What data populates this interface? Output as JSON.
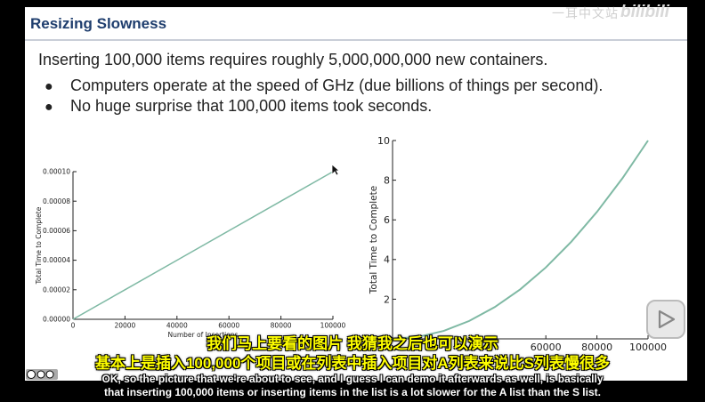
{
  "slide": {
    "title": "Resizing Slowness",
    "main_line": "Inserting 100,000 items requires roughly 5,000,000,000 new containers.",
    "bullets": [
      "Computers operate at the speed of GHz (due billions of things per second).",
      "No huge surprise that 100,000 items took seconds."
    ],
    "bullet_glyph": "●"
  },
  "chart_data": [
    {
      "type": "line",
      "title": "",
      "xlabel": "Number of Insertions",
      "ylabel": "Total Time to Complete",
      "xlim": [
        0,
        100000
      ],
      "ylim": [
        0,
        0.0001
      ],
      "x_ticks": [
        "0",
        "20000",
        "40000",
        "60000",
        "80000",
        "100000"
      ],
      "y_ticks": [
        "0.00000",
        "0.00002",
        "0.00004",
        "0.00006",
        "0.00008",
        "0.00010"
      ],
      "grid": false,
      "line_color": "#7fb9a4",
      "series": [
        {
          "x": [
            0,
            20000,
            40000,
            60000,
            80000,
            100000
          ],
          "y": [
            0,
            2e-05,
            4e-05,
            6e-05,
            8e-05,
            0.0001
          ]
        }
      ]
    },
    {
      "type": "line",
      "title": "",
      "xlabel": "",
      "ylabel": "Total Time to Complete",
      "xlim": [
        0,
        100000
      ],
      "ylim": [
        0,
        10
      ],
      "x_ticks": [
        "60000",
        "80000",
        "100000"
      ],
      "y_ticks": [
        "2",
        "4",
        "6",
        "8",
        "10"
      ],
      "grid": false,
      "line_color": "#7fb9a4",
      "series": [
        {
          "x": [
            0,
            10000,
            20000,
            30000,
            40000,
            50000,
            60000,
            70000,
            80000,
            90000,
            100000
          ],
          "y": [
            0,
            0.1,
            0.4,
            0.9,
            1.6,
            2.5,
            3.6,
            4.9,
            6.4,
            8.1,
            10
          ]
        }
      ]
    }
  ],
  "subtitles": {
    "zh_line1": "我们马上要看的图片 我猜我之后也可以演示",
    "zh_line2": "基本上是插入100,000个项目或在列表中插入项目对A列表来说比S列表慢很多",
    "en_line1": "OK, so the picture that we're about to see, and I guess I can demo it afterwards as well, is basically",
    "en_line2": "that inserting 100,000 items or inserting items in the list is a lot slower for the A list than the S list."
  },
  "icons": {
    "cursor": "mouse-pointer-icon",
    "license": "creative-commons-icon",
    "player": "play-icon",
    "platform": "bilibili-logo"
  },
  "overlay": {
    "watermark_text": "一耳中文站",
    "logo_text": "bilibili"
  }
}
